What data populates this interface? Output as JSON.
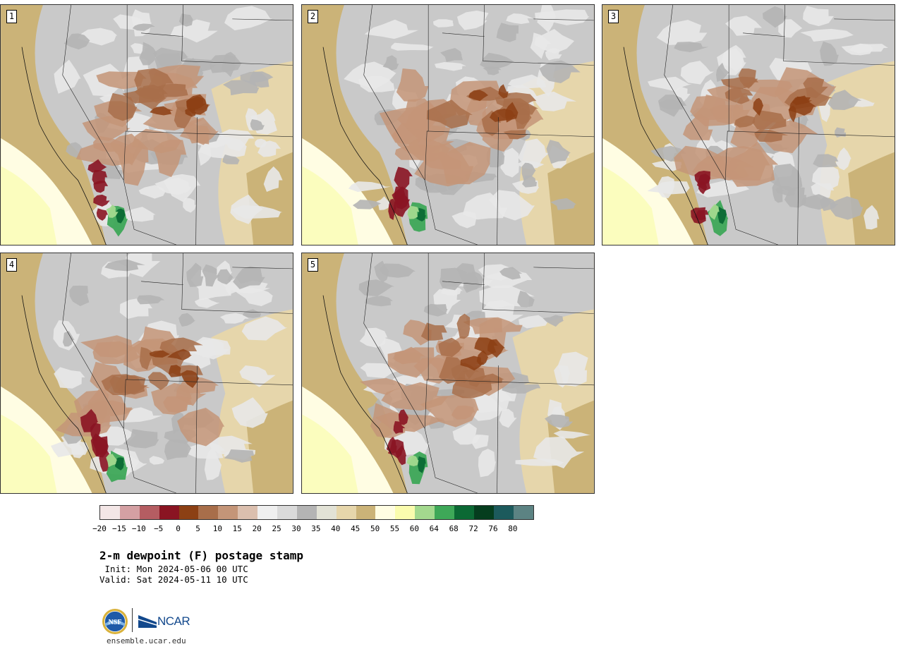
{
  "figure": {
    "title": "2-m dewpoint (F) postage stamp",
    "init_label": " Init: Mon 2024-05-06 00 UTC",
    "valid_label": "Valid: Sat 2024-05-11 10 UTC",
    "website": "ensemble.ucar.edu",
    "logos": {
      "nsf": "NSF",
      "ncar": "NCAR"
    }
  },
  "panels": [
    {
      "label": "1"
    },
    {
      "label": "2"
    },
    {
      "label": "3"
    },
    {
      "label": "4"
    },
    {
      "label": "5"
    }
  ],
  "colorbar": {
    "colors": [
      "#f3e6e6",
      "#d4a0a3",
      "#b55d62",
      "#8a1422",
      "#8c4014",
      "#a86e4a",
      "#c49578",
      "#dbbfae",
      "#efefef",
      "#dadada",
      "#b4b4b4",
      "#e2e2d6",
      "#e6d6ab",
      "#cbb378",
      "#fffde3",
      "#fafcae",
      "#a3d98e",
      "#3ea858",
      "#0b6934",
      "#053d1e",
      "#1c5a5c",
      "#5c8383"
    ],
    "ticks": [
      "−20",
      "−15",
      "−10",
      "−5",
      "0",
      "5",
      "10",
      "15",
      "20",
      "25",
      "30",
      "35",
      "40",
      "45",
      "50",
      "55",
      "60",
      "64",
      "68",
      "72",
      "76",
      "80"
    ]
  }
}
